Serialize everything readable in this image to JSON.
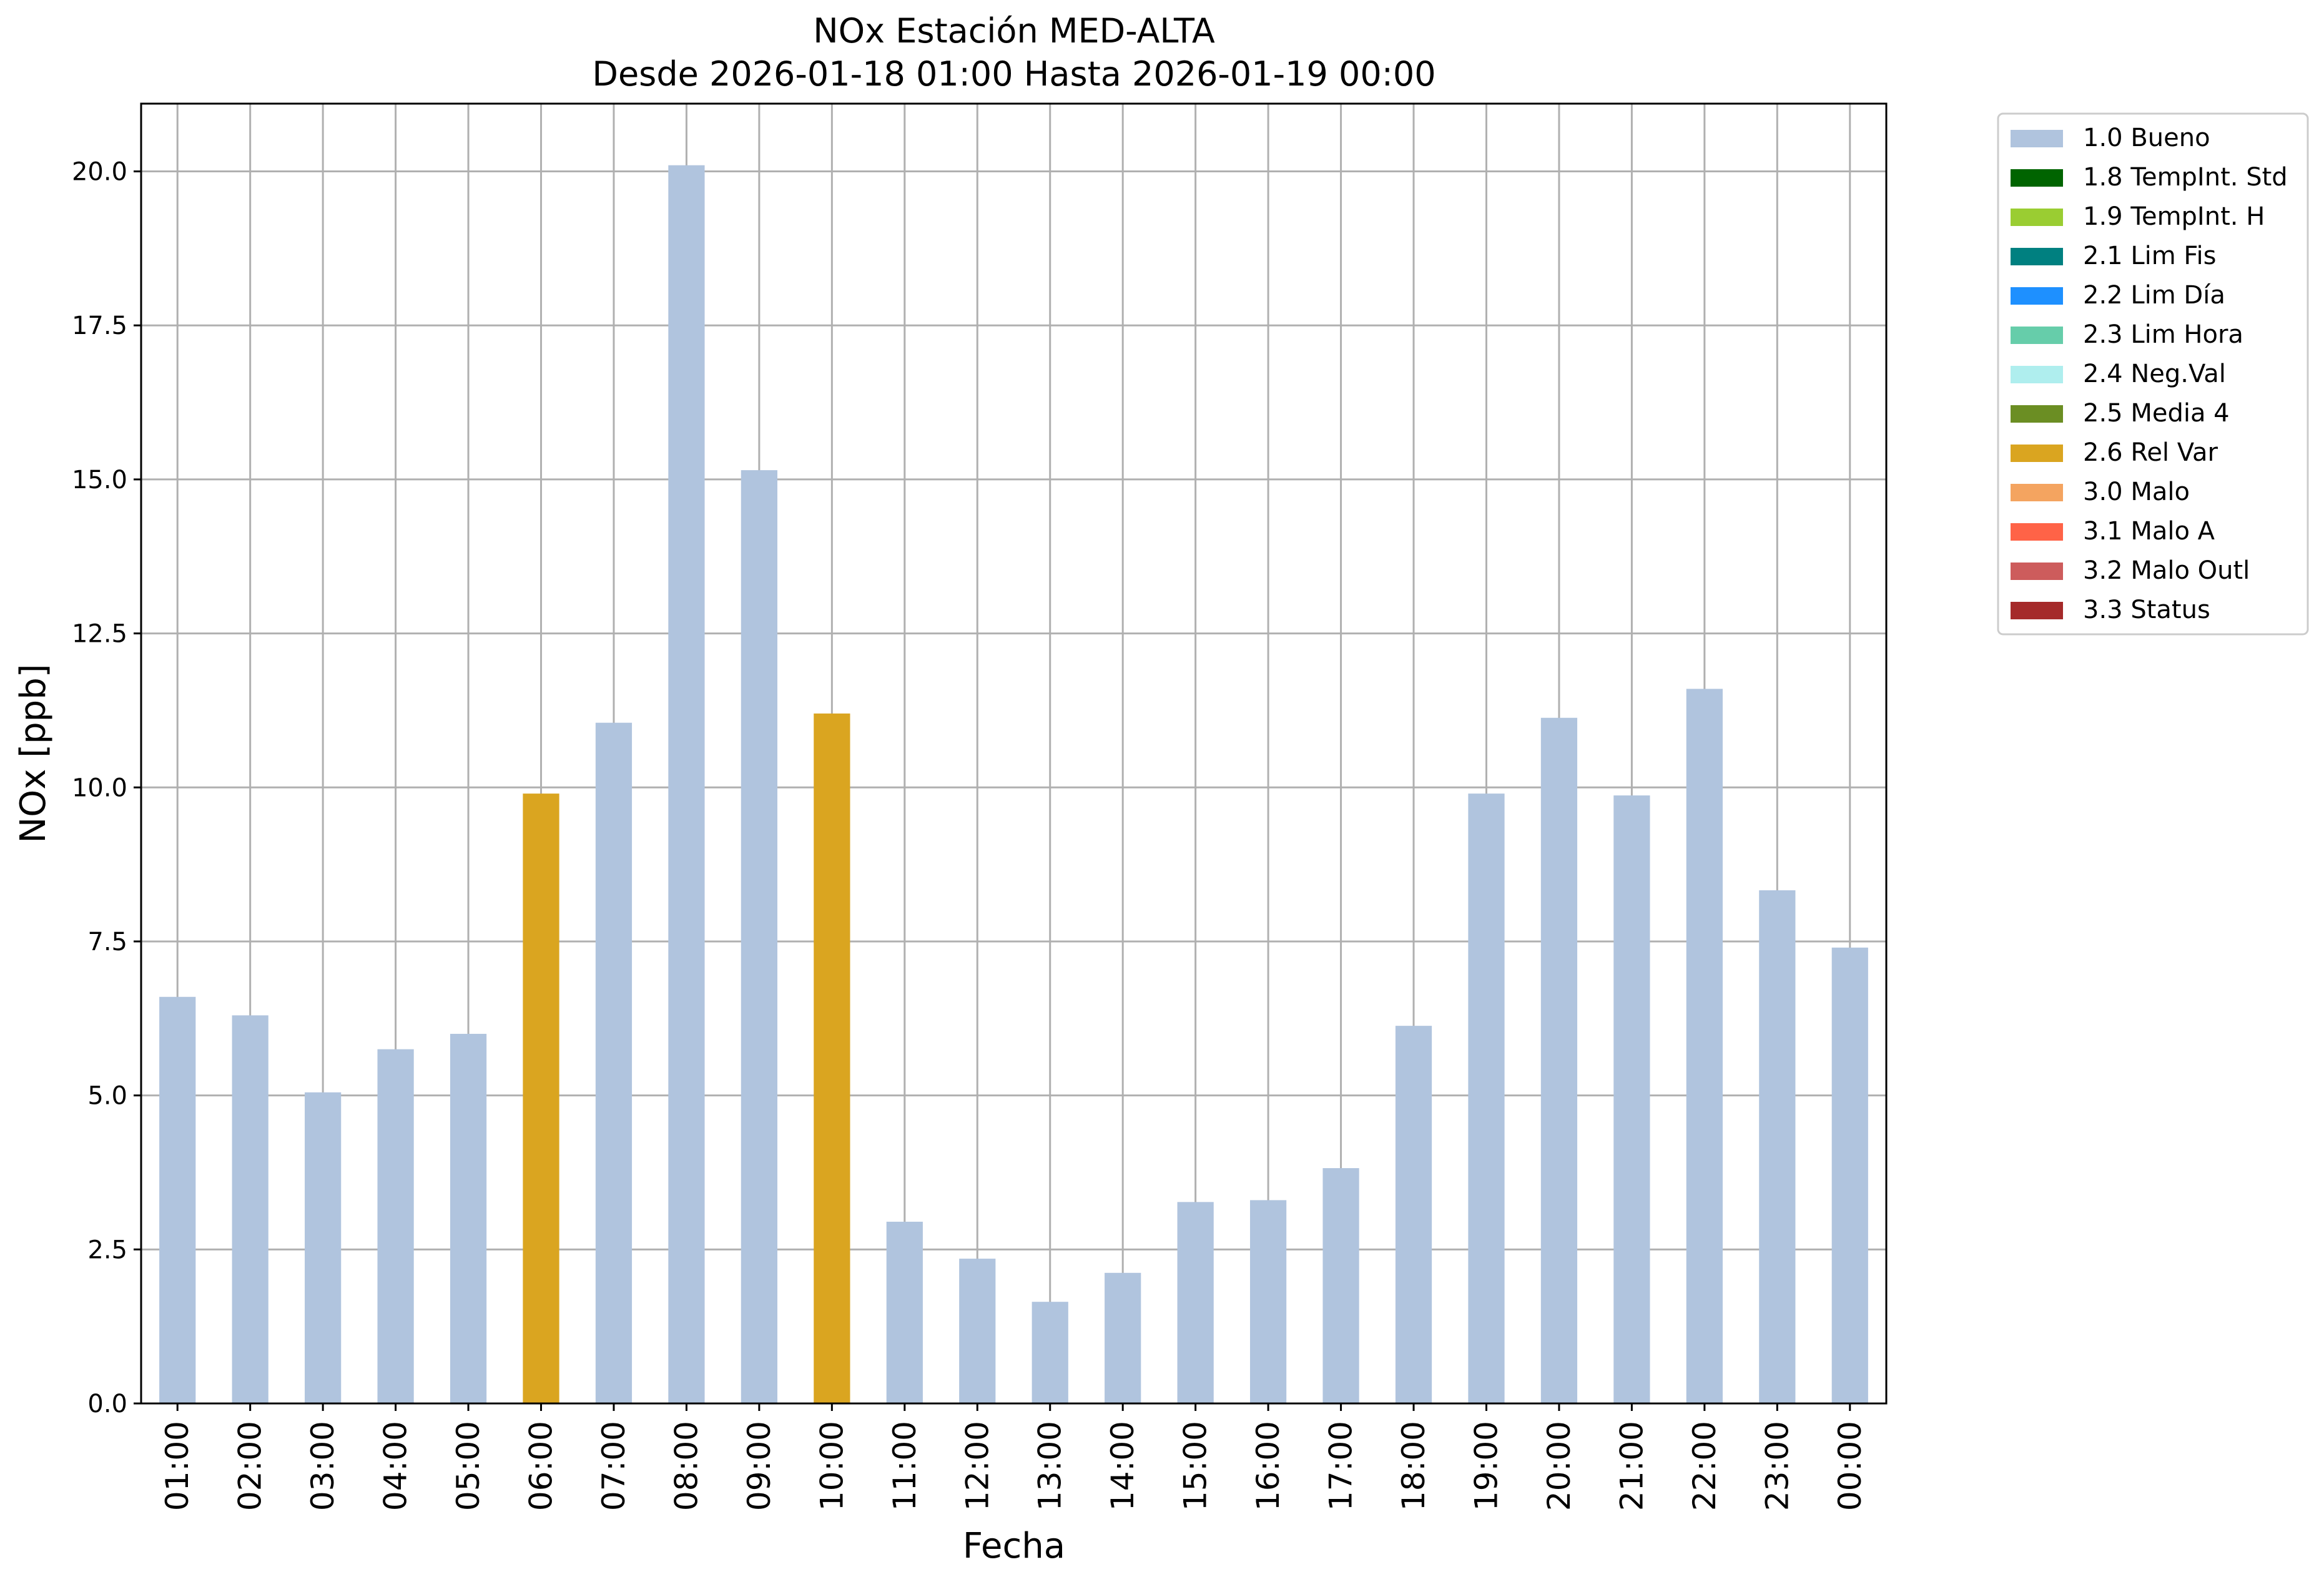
{
  "chart_data": {
    "type": "bar",
    "title": "NOx Estación MED-ALTA",
    "subtitle": "Desde 2026-01-18 01:00 Hasta 2026-01-19 00:00",
    "xlabel": "Fecha",
    "ylabel": "NOx [ppb]",
    "ylim": [
      0,
      21.1
    ],
    "yticks": [
      0.0,
      2.5,
      5.0,
      7.5,
      10.0,
      12.5,
      15.0,
      17.5,
      20.0
    ],
    "ytick_labels": [
      "0.0",
      "2.5",
      "5.0",
      "7.5",
      "10.0",
      "12.5",
      "15.0",
      "17.5",
      "20.0"
    ],
    "grid": true,
    "legend_position": "outside-right-top",
    "categories": [
      "01:00",
      "02:00",
      "03:00",
      "04:00",
      "05:00",
      "06:00",
      "07:00",
      "08:00",
      "09:00",
      "10:00",
      "11:00",
      "12:00",
      "13:00",
      "14:00",
      "15:00",
      "16:00",
      "17:00",
      "18:00",
      "19:00",
      "20:00",
      "21:00",
      "22:00",
      "23:00",
      "00:00"
    ],
    "values": [
      6.6,
      6.3,
      5.05,
      5.75,
      6.0,
      9.9,
      11.05,
      20.1,
      15.15,
      11.2,
      2.95,
      2.35,
      1.65,
      2.12,
      3.27,
      3.3,
      3.82,
      6.13,
      9.9,
      11.13,
      9.87,
      11.6,
      8.33,
      7.4
    ],
    "quality_flags": [
      "1.0 Bueno",
      "1.0 Bueno",
      "1.0 Bueno",
      "1.0 Bueno",
      "1.0 Bueno",
      "2.6 Rel Var",
      "1.0 Bueno",
      "1.0 Bueno",
      "1.0 Bueno",
      "2.6 Rel Var",
      "1.0 Bueno",
      "1.0 Bueno",
      "1.0 Bueno",
      "1.0 Bueno",
      "1.0 Bueno",
      "1.0 Bueno",
      "1.0 Bueno",
      "1.0 Bueno",
      "1.0 Bueno",
      "1.0 Bueno",
      "1.0 Bueno",
      "1.0 Bueno",
      "1.0 Bueno",
      "1.0 Bueno"
    ],
    "legend": [
      {
        "label": "1.0 Bueno",
        "color": "#b0c4de"
      },
      {
        "label": "1.8 TempInt. Std",
        "color": "#006400"
      },
      {
        "label": "1.9 TempInt. H",
        "color": "#9acd32"
      },
      {
        "label": "2.1 Lim Fis",
        "color": "#008080"
      },
      {
        "label": "2.2 Lim Día",
        "color": "#1e90ff"
      },
      {
        "label": "2.3 Lim Hora",
        "color": "#66cdaa"
      },
      {
        "label": "2.4 Neg.Val",
        "color": "#afeeee"
      },
      {
        "label": "2.5 Media 4",
        "color": "#6b8e23"
      },
      {
        "label": "2.6 Rel Var",
        "color": "#daa520"
      },
      {
        "label": "3.0 Malo",
        "color": "#f4a460"
      },
      {
        "label": "3.1 Malo A",
        "color": "#ff6347"
      },
      {
        "label": "3.2 Malo Outl",
        "color": "#cd5c5c"
      },
      {
        "label": "3.3 Status",
        "color": "#a52a2a"
      }
    ]
  }
}
